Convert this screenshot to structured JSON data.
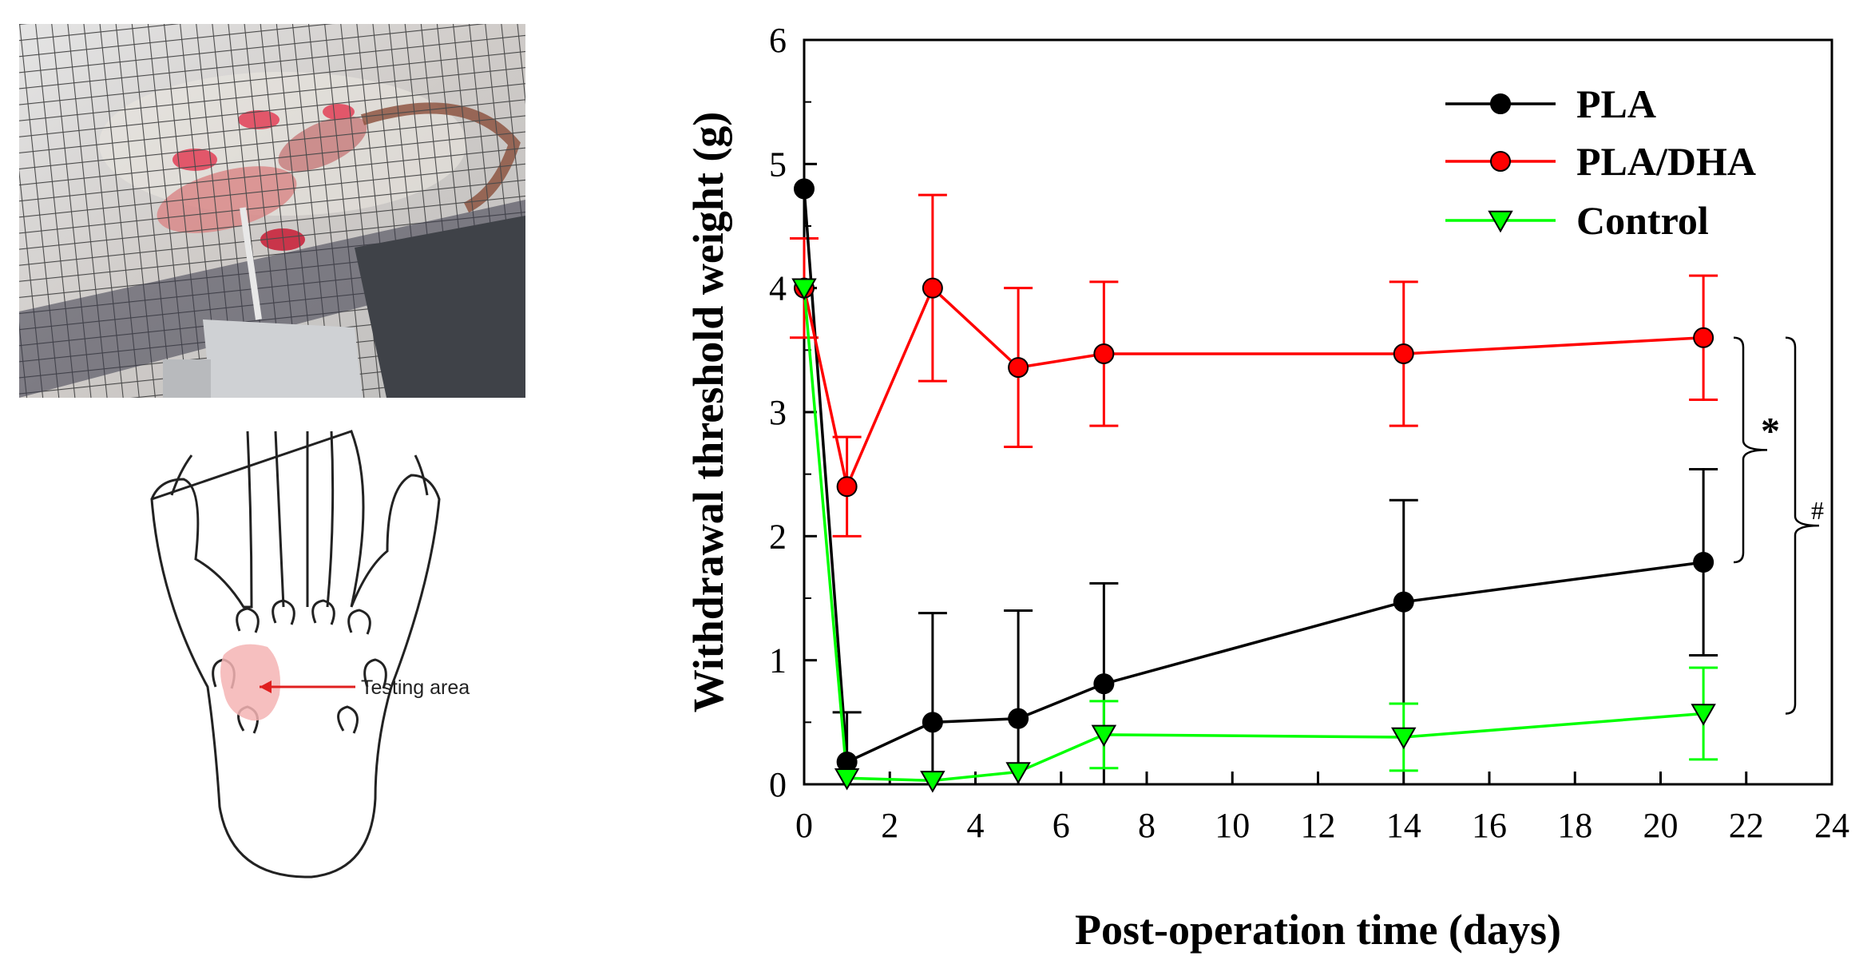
{
  "figure": {
    "paw_annotation": "Testing area"
  },
  "colors": {
    "pla": "#000000",
    "pla_dha": "#ff0000",
    "control": "#00ff00"
  },
  "chart_data": {
    "type": "line",
    "title": "",
    "xlabel": "Post-operation time (days)",
    "ylabel": "Withdrawal threshold weight (g)",
    "xlim": [
      0,
      24
    ],
    "ylim": [
      0,
      6
    ],
    "xticks": [
      0,
      2,
      4,
      6,
      8,
      10,
      12,
      14,
      16,
      18,
      20,
      22,
      24
    ],
    "yticks": [
      0,
      1,
      2,
      3,
      4,
      5,
      6
    ],
    "grid": false,
    "legend_position": "top-right",
    "series": [
      {
        "name": "PLA",
        "color": "#000000",
        "marker": "circle",
        "x": [
          0,
          1,
          3,
          5,
          7,
          14,
          21
        ],
        "y": [
          4.8,
          0.18,
          0.5,
          0.53,
          0.81,
          1.47,
          1.79
        ],
        "error": [
          0,
          0.4,
          0.88,
          0.87,
          0.81,
          0.82,
          0.75
        ]
      },
      {
        "name": "PLA/DHA",
        "color": "#ff0000",
        "marker": "circle",
        "x": [
          0,
          1,
          3,
          5,
          7,
          14,
          21
        ],
        "y": [
          4.0,
          2.4,
          4.0,
          3.36,
          3.47,
          3.47,
          3.6
        ],
        "error": [
          0.4,
          0.4,
          0.75,
          0.64,
          0.58,
          0.58,
          0.5
        ]
      },
      {
        "name": "Control",
        "color": "#00ff00",
        "marker": "triangle-down",
        "x": [
          0,
          1,
          3,
          5,
          7,
          14,
          21
        ],
        "y": [
          4.0,
          0.05,
          0.03,
          0.1,
          0.4,
          0.38,
          0.57
        ],
        "error": [
          0,
          0,
          0,
          0,
          0.27,
          0.27,
          0.37
        ]
      }
    ],
    "annotations": [
      {
        "label": "*",
        "between": [
          "PLA/DHA",
          "PLA"
        ]
      },
      {
        "label": "#",
        "between": [
          "PLA/DHA",
          "Control"
        ]
      }
    ]
  }
}
